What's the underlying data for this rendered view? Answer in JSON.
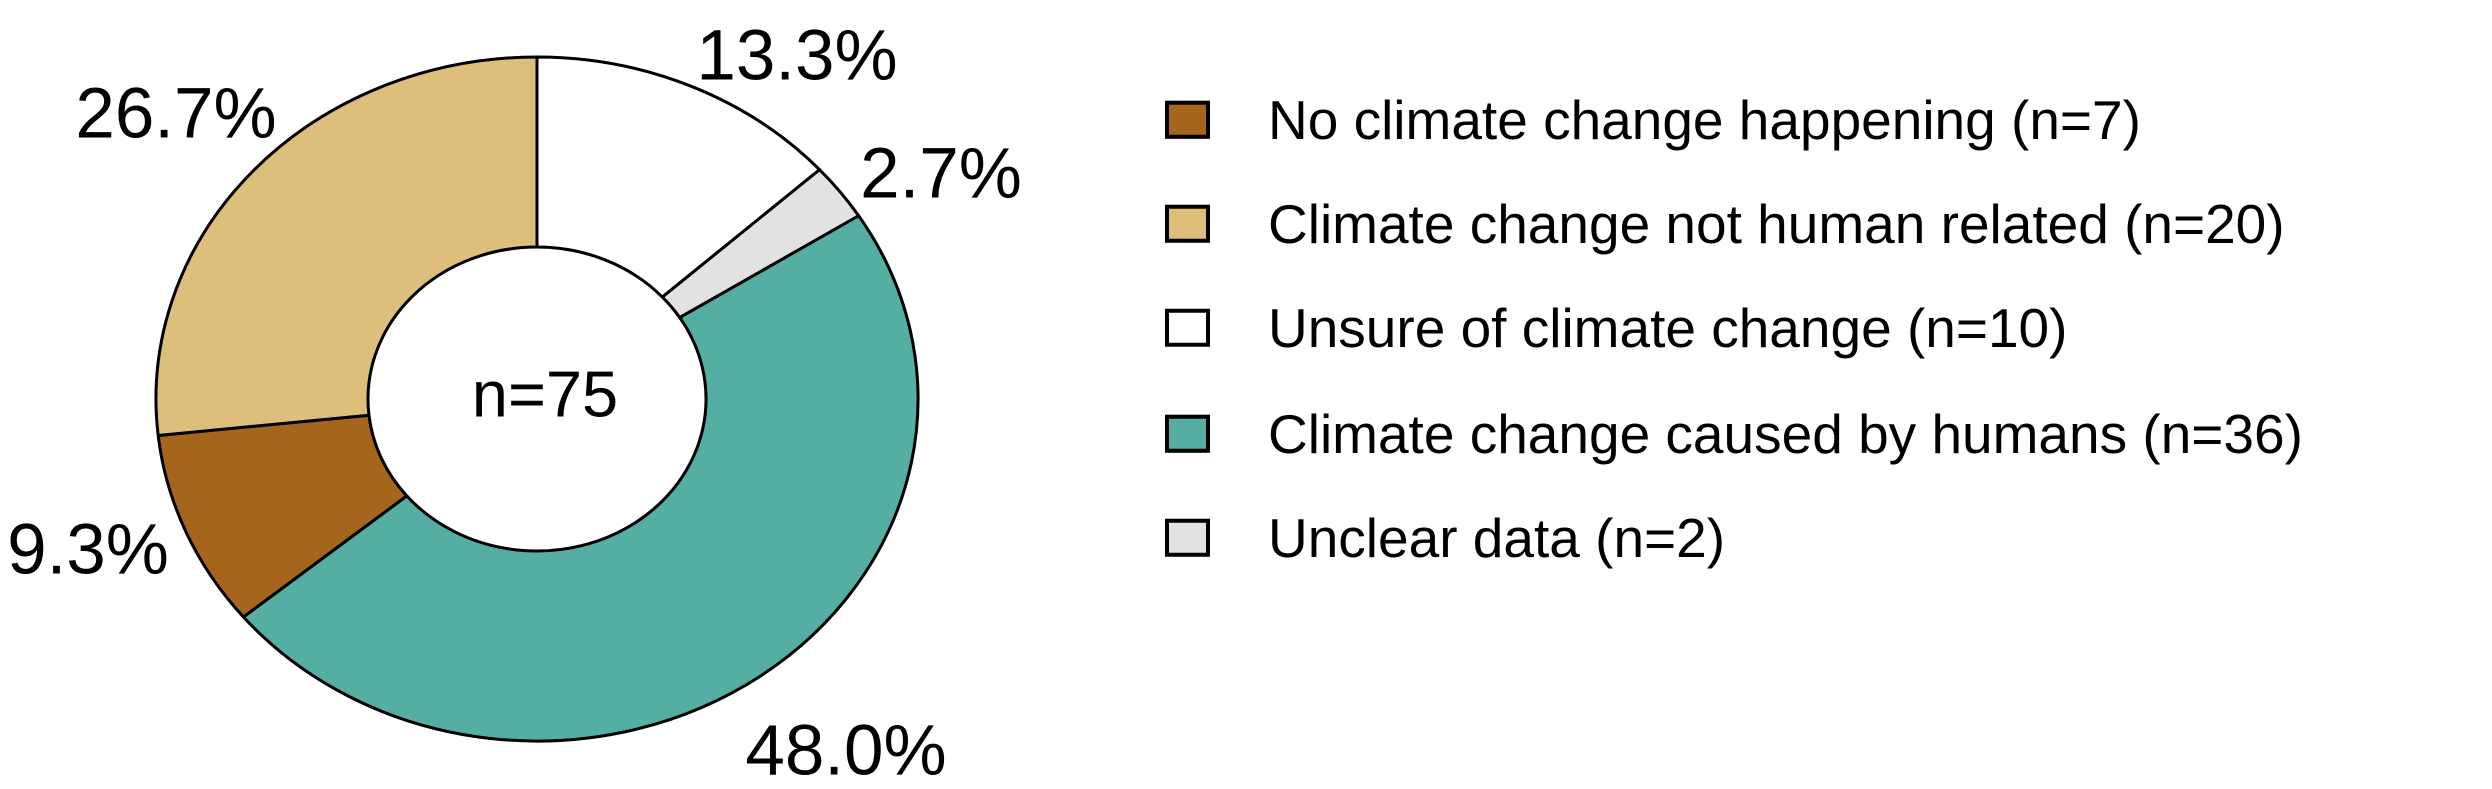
{
  "chart_data": {
    "type": "donut",
    "title": "",
    "center_label": "n=75",
    "total": 75,
    "unit": "%",
    "legend_position": "right",
    "outline_color": "#000000",
    "slices": [
      {
        "key": "no-climate-change",
        "label": "No climate change happening (n=7)",
        "count": 7,
        "pct": 9.3,
        "pct_label": "9.3%",
        "color": "#A5651D"
      },
      {
        "key": "not-human-related",
        "label": "Climate change not human related (n=20)",
        "count": 20,
        "pct": 26.7,
        "pct_label": "26.7%",
        "color": "#DDBE7B"
      },
      {
        "key": "unsure",
        "label": "Unsure of climate change (n=10)",
        "count": 10,
        "pct": 13.3,
        "pct_label": "13.3%",
        "color": "#FFFFFF"
      },
      {
        "key": "caused-by-humans",
        "label": "Climate change caused by humans (n=36)",
        "count": 36,
        "pct": 48.0,
        "pct_label": "48.0%",
        "color": "#54AEA3"
      },
      {
        "key": "unclear",
        "label": "Unclear data (n=2)",
        "count": 2,
        "pct": 2.7,
        "pct_label": "2.7%",
        "color": "#E2E2E2"
      }
    ],
    "draw_order_from_top_clockwise": [
      "unsure",
      "unclear",
      "caused-by-humans",
      "no-climate-change",
      "not-human-related"
    ]
  }
}
